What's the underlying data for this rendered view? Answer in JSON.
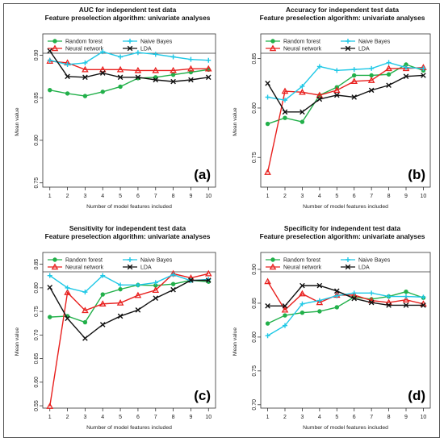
{
  "colors": {
    "Random forest": "#22b04a",
    "Neural network": "#e8201e",
    "Naive Bayes": "#1ec8e6",
    "LDA": "#111111"
  },
  "chart_data": [
    {
      "type": "line",
      "title": "AUC for independent test data",
      "subtitle": "Feature preselection algorithm: univariate analyses",
      "xlabel": "Number of model features included",
      "ylabel": "Mean value",
      "panel": "(a)",
      "x": [
        1,
        2,
        3,
        4,
        5,
        6,
        7,
        8,
        9,
        10
      ],
      "ylim": [
        0.745,
        0.925
      ],
      "yticks": [
        0.75,
        0.8,
        0.85,
        0.9
      ],
      "yticklabels": [
        "0.75",
        "0.80",
        "0.85",
        "0.90"
      ],
      "series": [
        {
          "name": "Random forest",
          "values": [
            0.859,
            0.855,
            0.852,
            0.857,
            0.863,
            0.873,
            0.874,
            0.877,
            0.88,
            0.883
          ]
        },
        {
          "name": "Neural network",
          "values": [
            0.893,
            0.891,
            0.883,
            0.883,
            0.883,
            0.882,
            0.882,
            0.882,
            0.884,
            0.884
          ]
        },
        {
          "name": "Naive Bayes",
          "values": [
            0.894,
            0.889,
            0.891,
            0.904,
            0.898,
            0.903,
            0.901,
            0.898,
            0.895,
            0.894
          ]
        },
        {
          "name": "LDA",
          "values": [
            0.905,
            0.875,
            0.874,
            0.879,
            0.874,
            0.874,
            0.871,
            0.869,
            0.871,
            0.874
          ]
        }
      ]
    },
    {
      "type": "line",
      "title": "Accuracy for independent test data",
      "subtitle": "Feature preselection algorithm: univariate analyses",
      "xlabel": "Number of model features included",
      "ylabel": "Mean value",
      "panel": "(b)",
      "x": [
        1,
        2,
        3,
        4,
        5,
        6,
        7,
        8,
        9,
        10
      ],
      "ylim": [
        0.72,
        0.875
      ],
      "yticks": [
        0.75,
        0.8,
        0.85
      ],
      "yticklabels": [
        "0.75",
        "0.80",
        "0.85"
      ],
      "series": [
        {
          "name": "Random forest",
          "values": [
            0.784,
            0.79,
            0.786,
            0.813,
            0.821,
            0.833,
            0.833,
            0.834,
            0.844,
            0.838
          ]
        },
        {
          "name": "Neural network",
          "values": [
            0.735,
            0.817,
            0.816,
            0.813,
            0.818,
            0.827,
            0.828,
            0.84,
            0.84,
            0.841
          ]
        },
        {
          "name": "Naive Bayes",
          "values": [
            0.811,
            0.808,
            0.822,
            0.842,
            0.838,
            0.839,
            0.84,
            0.846,
            0.841,
            0.84
          ]
        },
        {
          "name": "LDA",
          "values": [
            0.825,
            0.796,
            0.796,
            0.809,
            0.813,
            0.811,
            0.818,
            0.823,
            0.832,
            0.833
          ]
        }
      ]
    },
    {
      "type": "line",
      "title": "Sensitivity for independent test data",
      "subtitle": "Feature preselection algorithm: univariate analyses",
      "xlabel": "Number of model features included",
      "ylabel": "Mean value",
      "panel": "(c)",
      "x": [
        1,
        2,
        3,
        4,
        5,
        6,
        7,
        8,
        9,
        10
      ],
      "ylim": [
        0.545,
        0.875
      ],
      "yticks": [
        0.55,
        0.6,
        0.65,
        0.7,
        0.75,
        0.8,
        0.85
      ],
      "yticklabels": [
        "0.55",
        "0.60",
        "0.65",
        "0.70",
        "0.75",
        "0.80",
        "0.85"
      ],
      "series": [
        {
          "name": "Random forest",
          "values": [
            0.738,
            0.74,
            0.727,
            0.786,
            0.797,
            0.806,
            0.805,
            0.808,
            0.816,
            0.813
          ]
        },
        {
          "name": "Neural network",
          "values": [
            0.549,
            0.79,
            0.752,
            0.766,
            0.768,
            0.784,
            0.795,
            0.83,
            0.821,
            0.83
          ]
        },
        {
          "name": "Naive Bayes",
          "values": [
            0.826,
            0.8,
            0.791,
            0.826,
            0.806,
            0.806,
            0.811,
            0.828,
            0.815,
            0.818
          ]
        },
        {
          "name": "LDA",
          "values": [
            0.801,
            0.735,
            0.693,
            0.722,
            0.74,
            0.753,
            0.778,
            0.796,
            0.816,
            0.816
          ]
        }
      ]
    },
    {
      "type": "line",
      "title": "Specificity for independent test data",
      "subtitle": "Feature preselection algorithm: univariate analyses",
      "xlabel": "Number of model features included",
      "ylabel": "Mean value",
      "panel": "(d)",
      "x": [
        1,
        2,
        3,
        4,
        5,
        6,
        7,
        8,
        9,
        10
      ],
      "ylim": [
        0.695,
        0.925
      ],
      "yticks": [
        0.7,
        0.75,
        0.8,
        0.85,
        0.9
      ],
      "yticklabels": [
        "0.70",
        "0.75",
        "0.80",
        "0.85",
        "0.90"
      ],
      "series": [
        {
          "name": "Random forest",
          "values": [
            0.82,
            0.832,
            0.836,
            0.838,
            0.844,
            0.859,
            0.856,
            0.86,
            0.867,
            0.858
          ]
        },
        {
          "name": "Neural network",
          "values": [
            0.882,
            0.84,
            0.864,
            0.851,
            0.862,
            0.862,
            0.854,
            0.851,
            0.855,
            0.849
          ]
        },
        {
          "name": "Naive Bayes",
          "values": [
            0.802,
            0.817,
            0.849,
            0.854,
            0.861,
            0.865,
            0.865,
            0.86,
            0.86,
            0.859
          ]
        },
        {
          "name": "LDA",
          "values": [
            0.846,
            0.846,
            0.876,
            0.876,
            0.868,
            0.857,
            0.851,
            0.847,
            0.847,
            0.847
          ]
        }
      ]
    }
  ]
}
